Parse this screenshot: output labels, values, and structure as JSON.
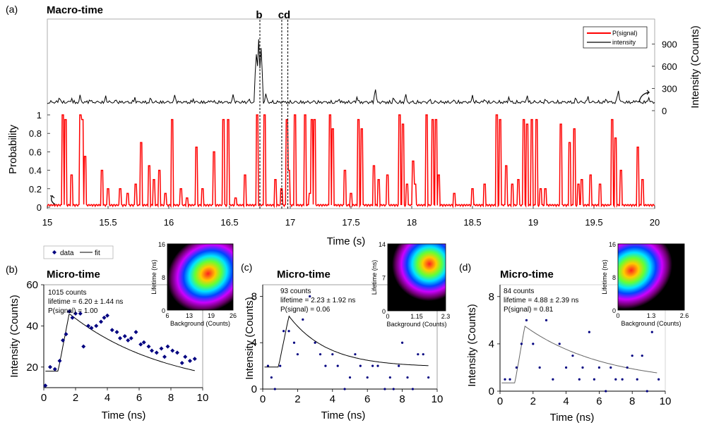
{
  "panel_labels": {
    "a": "(a)",
    "b": "(b)",
    "c": "(c)",
    "d": "(d)"
  },
  "chart_data": [
    {
      "id": "a",
      "type": "line",
      "title": "Macro-time",
      "xlabel": "Time (s)",
      "ylabel_left": "Probability",
      "ylabel_right": "Intensity (Counts)",
      "xlim": [
        15,
        20
      ],
      "xticks": [
        "15",
        "15.5",
        "16",
        "16.5",
        "17",
        "17.5",
        "18",
        "18.5",
        "19",
        "19.5",
        "20"
      ],
      "prob_ylim": [
        0,
        1
      ],
      "prob_ticks": [
        "0",
        "0.2",
        "0.4",
        "0.6",
        "0.8",
        "1"
      ],
      "int_ylim": [
        0,
        1000
      ],
      "int_ticks": [
        "0",
        "300",
        "600",
        "900"
      ],
      "markers": [
        {
          "label": "b",
          "x": 16.75
        },
        {
          "label": "c",
          "x": 16.93
        },
        {
          "label": "d",
          "x": 16.98
        }
      ],
      "legend": {
        "position": "top-right",
        "entries": [
          "P(signal)",
          "intensity"
        ]
      },
      "colors": {
        "prob": "#ff0000",
        "intensity": "#000000"
      },
      "prob_spikes": [
        [
          15.13,
          1.0
        ],
        [
          15.15,
          0.95
        ],
        [
          15.2,
          0.35
        ],
        [
          15.27,
          1.0
        ],
        [
          15.29,
          0.95
        ],
        [
          15.31,
          0.55
        ],
        [
          15.45,
          0.4
        ],
        [
          15.5,
          0.2
        ],
        [
          15.6,
          0.2
        ],
        [
          15.66,
          0.15
        ],
        [
          15.73,
          0.25
        ],
        [
          15.77,
          0.7
        ],
        [
          15.84,
          0.45
        ],
        [
          15.88,
          0.3
        ],
        [
          15.92,
          0.4
        ],
        [
          15.97,
          0.15
        ],
        [
          16.03,
          0.95
        ],
        [
          16.1,
          0.2
        ],
        [
          16.15,
          0.1
        ],
        [
          16.23,
          0.65
        ],
        [
          16.28,
          0.2
        ],
        [
          16.37,
          0.6
        ],
        [
          16.45,
          0.95
        ],
        [
          16.49,
          0.95
        ],
        [
          16.55,
          0.1
        ],
        [
          16.63,
          0.35
        ],
        [
          16.73,
          1.0
        ],
        [
          16.79,
          1.0
        ],
        [
          16.88,
          0.3
        ],
        [
          16.93,
          0.2
        ],
        [
          16.97,
          0.95
        ],
        [
          16.99,
          0.4
        ],
        [
          17.04,
          1.0
        ],
        [
          17.12,
          1.0
        ],
        [
          17.16,
          0.15
        ],
        [
          17.18,
          0.95
        ],
        [
          17.2,
          0.95
        ],
        [
          17.33,
          1.0
        ],
        [
          17.35,
          0.85
        ],
        [
          17.45,
          0.4
        ],
        [
          17.5,
          0.15
        ],
        [
          17.56,
          0.95
        ],
        [
          17.59,
          0.85
        ],
        [
          17.69,
          0.45
        ],
        [
          17.73,
          0.3
        ],
        [
          17.8,
          0.35
        ],
        [
          17.9,
          1.0
        ],
        [
          17.93,
          0.9
        ],
        [
          17.96,
          0.25
        ],
        [
          18.01,
          0.5
        ],
        [
          18.03,
          0.25
        ],
        [
          18.12,
          1.0
        ],
        [
          18.17,
          0.95
        ],
        [
          18.2,
          0.95
        ],
        [
          18.22,
          0.35
        ],
        [
          18.35,
          0.15
        ],
        [
          18.5,
          0.2
        ],
        [
          18.6,
          0.25
        ],
        [
          18.7,
          1.0
        ],
        [
          18.73,
          0.95
        ],
        [
          18.78,
          0.45
        ],
        [
          18.83,
          0.25
        ],
        [
          18.88,
          0.3
        ],
        [
          18.92,
          0.95
        ],
        [
          18.95,
          0.9
        ],
        [
          18.99,
          0.95
        ],
        [
          19.03,
          0.95
        ],
        [
          19.06,
          0.2
        ],
        [
          19.1,
          0.2
        ],
        [
          19.23,
          0.9
        ],
        [
          19.3,
          0.7
        ],
        [
          19.34,
          0.85
        ],
        [
          19.37,
          0.25
        ],
        [
          19.4,
          0.3
        ],
        [
          19.47,
          0.35
        ],
        [
          19.55,
          0.25
        ],
        [
          19.65,
          0.95
        ],
        [
          19.68,
          0.75
        ],
        [
          19.72,
          0.4
        ],
        [
          19.86,
          0.65
        ],
        [
          19.9,
          0.3
        ]
      ],
      "intensity_spikes": [
        [
          15.1,
          200
        ],
        [
          15.2,
          180
        ],
        [
          15.27,
          220
        ],
        [
          15.35,
          170
        ],
        [
          15.48,
          210
        ],
        [
          15.57,
          160
        ],
        [
          15.72,
          190
        ],
        [
          15.85,
          200
        ],
        [
          16.05,
          230
        ],
        [
          16.2,
          170
        ],
        [
          16.35,
          160
        ],
        [
          16.53,
          230
        ],
        [
          16.66,
          180
        ],
        [
          16.72,
          800
        ],
        [
          16.74,
          980
        ],
        [
          16.76,
          860
        ],
        [
          16.8,
          250
        ],
        [
          17.0,
          110
        ],
        [
          17.2,
          140
        ],
        [
          17.4,
          180
        ],
        [
          17.55,
          200
        ],
        [
          17.7,
          310
        ],
        [
          17.85,
          200
        ],
        [
          17.95,
          240
        ],
        [
          18.15,
          180
        ],
        [
          18.35,
          170
        ],
        [
          18.5,
          210
        ],
        [
          18.6,
          175
        ],
        [
          18.8,
          200
        ],
        [
          18.95,
          220
        ],
        [
          19.1,
          180
        ],
        [
          19.35,
          200
        ],
        [
          19.45,
          210
        ],
        [
          19.6,
          180
        ],
        [
          19.7,
          290
        ],
        [
          19.85,
          160
        ],
        [
          19.95,
          190
        ]
      ]
    },
    {
      "id": "b",
      "type": "scatter",
      "title": "Micro-time",
      "xlabel": "Time (ns)",
      "ylabel": "Intensity (Counts)",
      "xlim": [
        0,
        10
      ],
      "ylim": [
        10,
        60
      ],
      "xticks": [
        "0",
        "2",
        "4",
        "6",
        "8",
        "10"
      ],
      "yticks": [
        "20",
        "40",
        "60"
      ],
      "legend": {
        "position": "top-left",
        "entries": [
          "data",
          "fit"
        ]
      },
      "annotation": [
        "1015 counts",
        "lifetime = 6.20 ± 1.44 ns",
        "P(signal) = 1.00"
      ],
      "points": [
        [
          0.1,
          11
        ],
        [
          0.4,
          20
        ],
        [
          0.7,
          19
        ],
        [
          1.0,
          23
        ],
        [
          1.2,
          33
        ],
        [
          1.4,
          36
        ],
        [
          1.6,
          47
        ],
        [
          1.8,
          44
        ],
        [
          2.0,
          46
        ],
        [
          2.3,
          46
        ],
        [
          2.5,
          30
        ],
        [
          2.8,
          40
        ],
        [
          3.0,
          39
        ],
        [
          3.3,
          40
        ],
        [
          3.6,
          42
        ],
        [
          3.8,
          44
        ],
        [
          4.0,
          45
        ],
        [
          4.3,
          38
        ],
        [
          4.6,
          37
        ],
        [
          4.8,
          34
        ],
        [
          5.1,
          35
        ],
        [
          5.3,
          33
        ],
        [
          5.5,
          34
        ],
        [
          5.8,
          37
        ],
        [
          6.1,
          31
        ],
        [
          6.3,
          32
        ],
        [
          6.6,
          30
        ],
        [
          6.8,
          28
        ],
        [
          7.1,
          27
        ],
        [
          7.4,
          29
        ],
        [
          7.6,
          25
        ],
        [
          7.8,
          30
        ],
        [
          8.1,
          28
        ],
        [
          8.4,
          27
        ],
        [
          8.7,
          22
        ],
        [
          8.9,
          25
        ],
        [
          9.2,
          23
        ],
        [
          9.5,
          24
        ]
      ],
      "fit": {
        "baseline": 18,
        "rise_start": 0.9,
        "peak_x": 1.6,
        "peak": 46,
        "tau": 6.2,
        "offset": 7.5
      },
      "inset": {
        "xlabel": "Background (Counts)",
        "ylabel": "Lifetime (ns)",
        "xticks": [
          "6",
          "13",
          "19",
          "26"
        ],
        "yticks": [
          "0",
          "8",
          "16"
        ],
        "center": [
          0.62,
          0.45
        ]
      }
    },
    {
      "id": "c",
      "type": "scatter",
      "title": "Micro-time",
      "xlabel": "Time (ns)",
      "ylabel": "Intensity (Counts)",
      "xlim": [
        0,
        10
      ],
      "ylim": [
        0,
        9
      ],
      "xticks": [
        "0",
        "2",
        "4",
        "6",
        "8",
        "10"
      ],
      "yticks": [
        "0",
        "4",
        "8"
      ],
      "annotation": [
        "93 counts",
        "lifetime = 2.23 ± 1.92 ns",
        "P(signal) = 0.06"
      ],
      "points": [
        [
          0.3,
          2
        ],
        [
          0.5,
          1
        ],
        [
          0.7,
          0
        ],
        [
          1.0,
          2
        ],
        [
          1.2,
          5
        ],
        [
          1.5,
          5
        ],
        [
          1.8,
          4
        ],
        [
          2.0,
          3
        ],
        [
          2.3,
          6
        ],
        [
          2.7,
          8
        ],
        [
          3.0,
          4
        ],
        [
          3.3,
          3
        ],
        [
          3.6,
          2
        ],
        [
          4.0,
          3
        ],
        [
          4.3,
          2
        ],
        [
          4.7,
          0
        ],
        [
          5.0,
          1
        ],
        [
          5.3,
          3
        ],
        [
          5.6,
          2
        ],
        [
          6.0,
          1
        ],
        [
          6.3,
          2
        ],
        [
          6.6,
          2
        ],
        [
          7.0,
          0
        ],
        [
          7.3,
          1
        ],
        [
          7.5,
          0
        ],
        [
          7.8,
          2
        ],
        [
          8.0,
          4
        ],
        [
          8.3,
          1
        ],
        [
          8.6,
          0
        ],
        [
          8.9,
          3
        ],
        [
          9.2,
          3
        ],
        [
          9.5,
          1
        ]
      ],
      "fit": {
        "baseline": 1.9,
        "rise_start": 0.9,
        "peak_x": 1.5,
        "peak": 6.3,
        "tau": 2.23,
        "offset": 1.9
      },
      "inset": {
        "xlabel": "Background (Counts)",
        "ylabel": "Lifetime (ns)",
        "xticks": [
          "0",
          "1.15",
          "2.3"
        ],
        "yticks": [
          "0",
          "7",
          "14"
        ],
        "center": [
          0.72,
          0.3
        ]
      }
    },
    {
      "id": "d",
      "type": "scatter",
      "title": "Micro-time",
      "xlabel": "Time (ns)",
      "ylabel": "Intensity (Counts)",
      "xlim": [
        0,
        10
      ],
      "ylim": [
        0,
        9
      ],
      "xticks": [
        "0",
        "2",
        "4",
        "6",
        "8",
        "10"
      ],
      "yticks": [
        "0",
        "4",
        "8"
      ],
      "annotation": [
        "84 counts",
        "lifetime = 4.88 ± 2.39 ns",
        "P(signal) = 0.81"
      ],
      "points": [
        [
          0.3,
          1
        ],
        [
          0.6,
          1
        ],
        [
          1.0,
          2
        ],
        [
          1.3,
          4
        ],
        [
          1.6,
          6
        ],
        [
          2.0,
          4
        ],
        [
          2.4,
          2
        ],
        [
          2.8,
          6
        ],
        [
          3.2,
          1
        ],
        [
          3.6,
          4
        ],
        [
          4.0,
          2
        ],
        [
          4.4,
          3
        ],
        [
          4.8,
          1
        ],
        [
          5.0,
          2
        ],
        [
          5.4,
          5
        ],
        [
          5.7,
          1
        ],
        [
          6.0,
          2
        ],
        [
          6.4,
          0
        ],
        [
          6.7,
          2
        ],
        [
          7.0,
          1
        ],
        [
          7.4,
          1
        ],
        [
          7.7,
          2
        ],
        [
          8.0,
          3
        ],
        [
          8.3,
          1
        ],
        [
          8.6,
          3
        ],
        [
          8.9,
          0
        ],
        [
          9.2,
          5
        ],
        [
          9.6,
          1
        ]
      ],
      "fit": {
        "baseline": 0.7,
        "rise_start": 0.9,
        "peak_x": 1.5,
        "peak": 5.5,
        "tau": 4.88,
        "offset": 0.6
      },
      "inset": {
        "xlabel": "Background (Counts)",
        "ylabel": "Lifetime (ns)",
        "xticks": [
          "0",
          "1.3",
          "2.6"
        ],
        "yticks": [
          "0",
          "8",
          "16"
        ],
        "center": [
          0.2,
          0.4
        ]
      }
    }
  ]
}
